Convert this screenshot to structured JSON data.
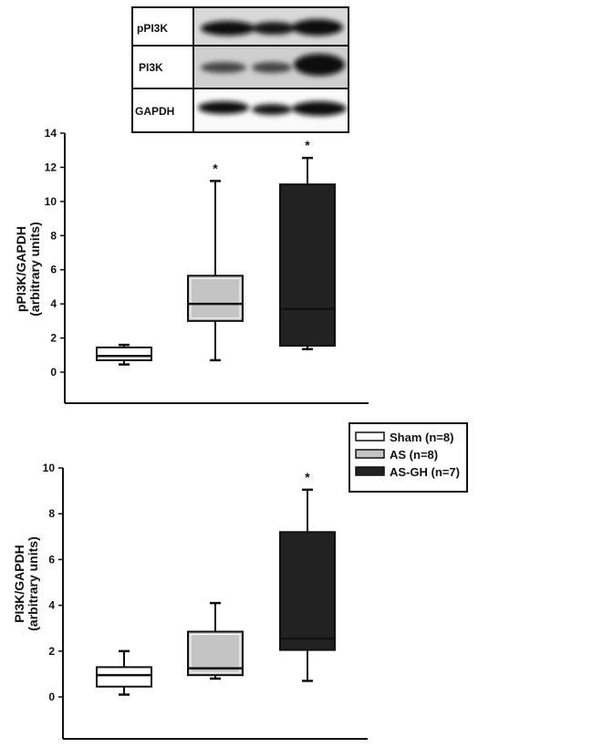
{
  "blot": {
    "labels": [
      "pPI3K",
      "PI3K",
      "GAPDH"
    ]
  },
  "legend": {
    "entries": [
      {
        "label": "Sham (n=8)",
        "color": "#ffffff"
      },
      {
        "label": "AS (n=8)",
        "color": "#c4c4c4"
      },
      {
        "label": "AS-GH (n=7)",
        "color": "#222222"
      }
    ]
  },
  "chart_data": [
    {
      "type": "box",
      "ylabel": "pPI3K/GAPDH",
      "ylabel2": "(arbitrary units)",
      "ylim": [
        -1.8,
        14
      ],
      "yticks": [
        "0",
        "2",
        "4",
        "6",
        "8",
        "10",
        "12",
        "14"
      ],
      "groups": [
        {
          "name": "Sham (n=8)",
          "min": 0.45,
          "q1": 0.7,
          "median": 0.95,
          "q3": 1.45,
          "max": 1.6,
          "sig": ""
        },
        {
          "name": "AS (n=8)",
          "min": 0.7,
          "q1": 3.0,
          "median": 4.0,
          "q3": 5.65,
          "max": 11.2,
          "sig": "*"
        },
        {
          "name": "AS-GH (n=7)",
          "min": 1.35,
          "q1": 1.55,
          "median": 3.7,
          "q3": 11.0,
          "max": 12.55,
          "sig": "*"
        }
      ]
    },
    {
      "type": "box",
      "ylabel": "PI3K/GAPDH",
      "ylabel2": "(arbitrary units)",
      "ylim": [
        -1.8,
        10
      ],
      "yticks": [
        "0",
        "2",
        "4",
        "6",
        "8",
        "10"
      ],
      "groups": [
        {
          "name": "Sham (n=8)",
          "min": 0.1,
          "q1": 0.45,
          "median": 0.95,
          "q3": 1.3,
          "max": 2.0,
          "sig": ""
        },
        {
          "name": "AS (n=8)",
          "min": 0.8,
          "q1": 0.95,
          "median": 1.25,
          "q3": 2.85,
          "max": 4.1,
          "sig": ""
        },
        {
          "name": "AS-GH (n=7)",
          "min": 0.7,
          "q1": 2.05,
          "median": 2.55,
          "q3": 7.2,
          "max": 9.05,
          "sig": "*"
        }
      ]
    }
  ]
}
